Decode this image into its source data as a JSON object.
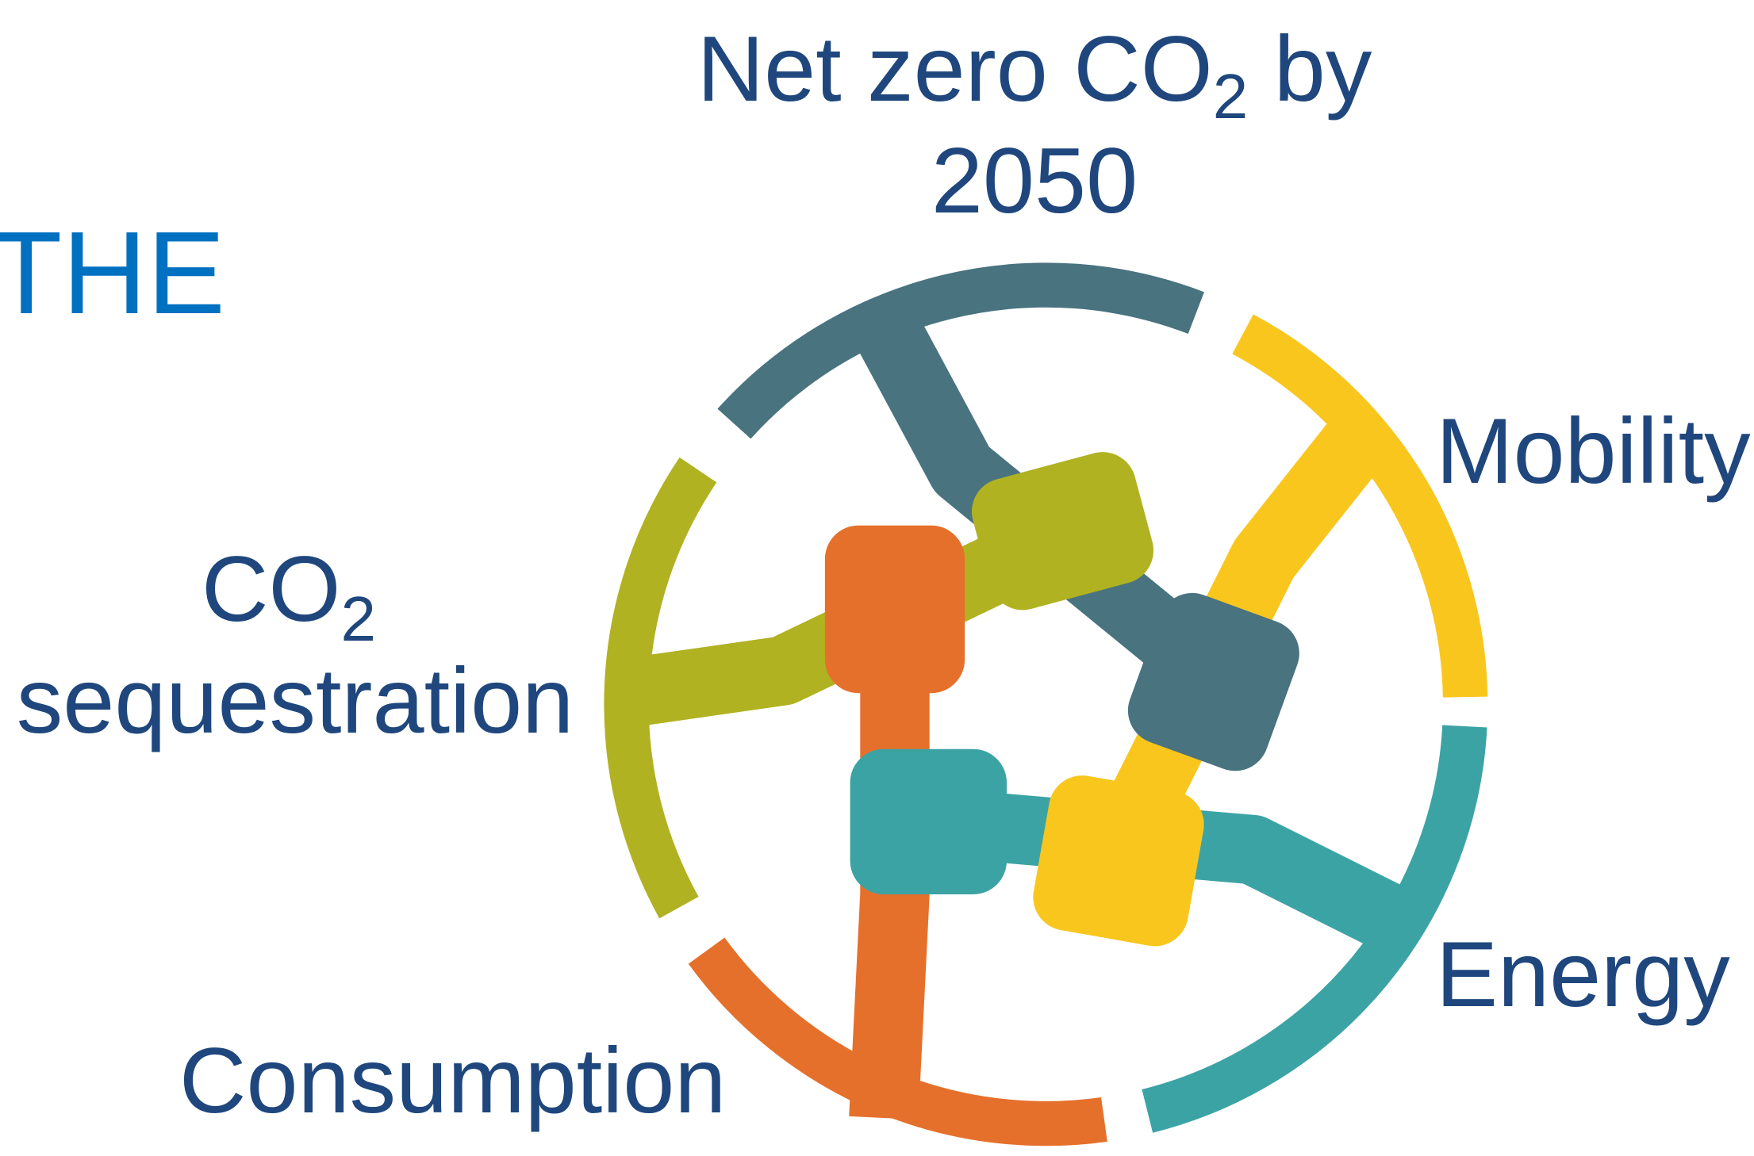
{
  "header_fragment": "THE",
  "goal": {
    "text_1": "Net zero CO",
    "subscript": "2",
    "text_2": " by",
    "line_2": "2050"
  },
  "nodes": [
    {
      "label": "Mobility"
    },
    {
      "label": "Energy"
    },
    {
      "label": "Consumption"
    },
    {
      "label_main": "CO",
      "subscript": "2",
      "label_line_2": "sequestration"
    }
  ]
}
